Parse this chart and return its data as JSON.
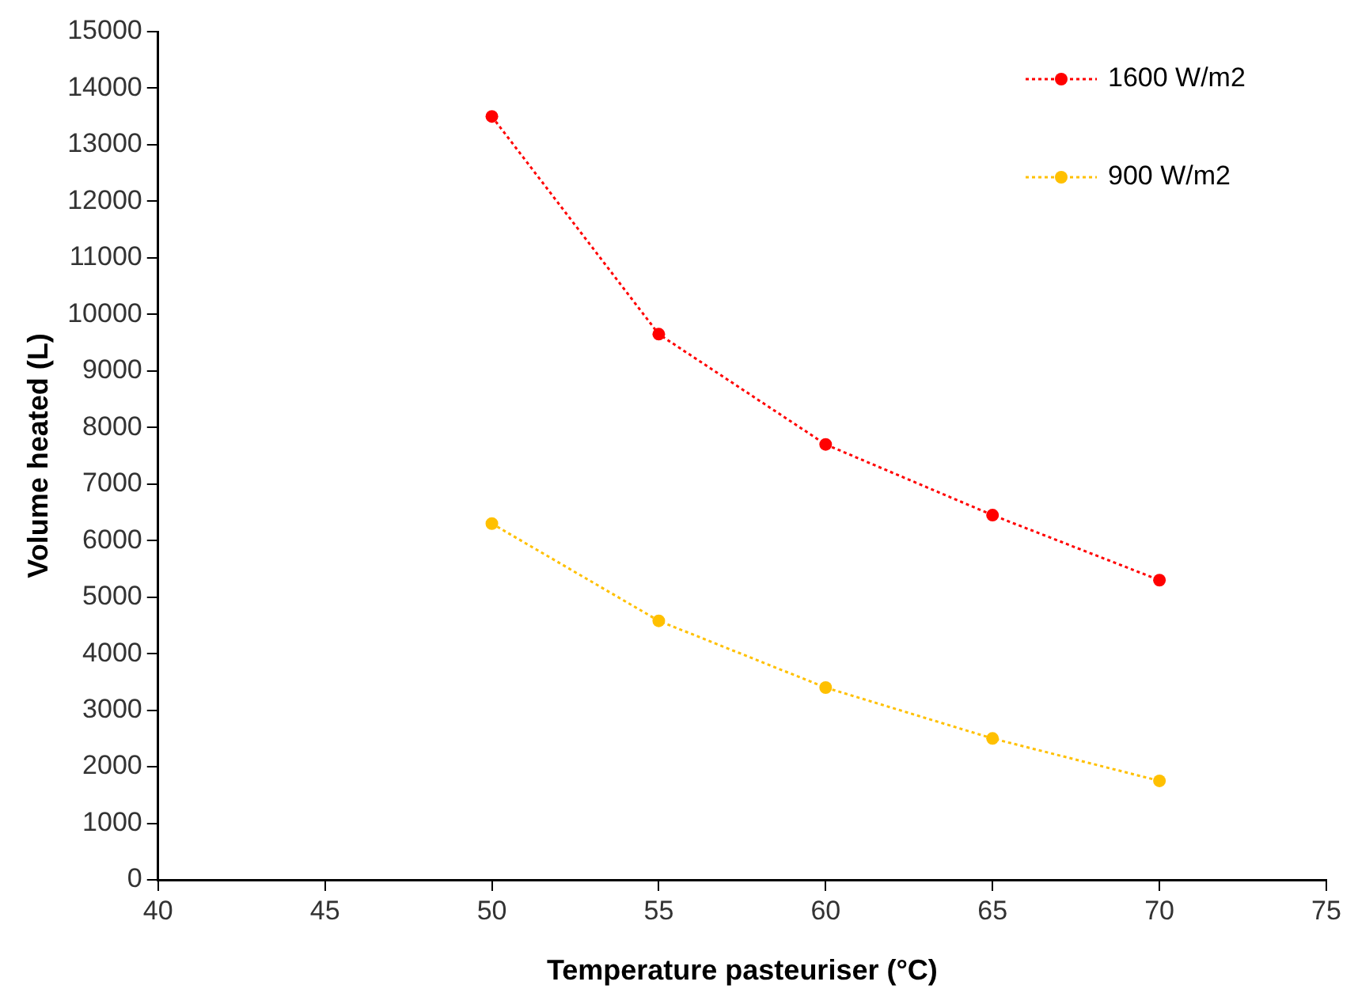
{
  "chart_data": {
    "type": "line",
    "xlabel": "Temperature pasteuriser (°C)",
    "ylabel": "Volume heated (L)",
    "x": [
      50,
      55,
      60,
      65,
      70
    ],
    "series": [
      {
        "name": "1600 W/m2",
        "color": "#ff0000",
        "values": [
          13500,
          9650,
          7700,
          6450,
          5300
        ]
      },
      {
        "name": "900 W/m2",
        "color": "#ffc000",
        "values": [
          6300,
          4580,
          3400,
          2500,
          1750
        ]
      }
    ],
    "xlim": [
      40,
      75
    ],
    "xticks": [
      40,
      45,
      50,
      55,
      60,
      65,
      70,
      75
    ],
    "ylim": [
      0,
      15000
    ],
    "yticks": [
      0,
      1000,
      2000,
      3000,
      4000,
      5000,
      6000,
      7000,
      8000,
      9000,
      10000,
      11000,
      12000,
      13000,
      14000,
      15000
    ],
    "grid": false,
    "legend": "top right",
    "marker": "circle",
    "line_style": "dotted"
  }
}
